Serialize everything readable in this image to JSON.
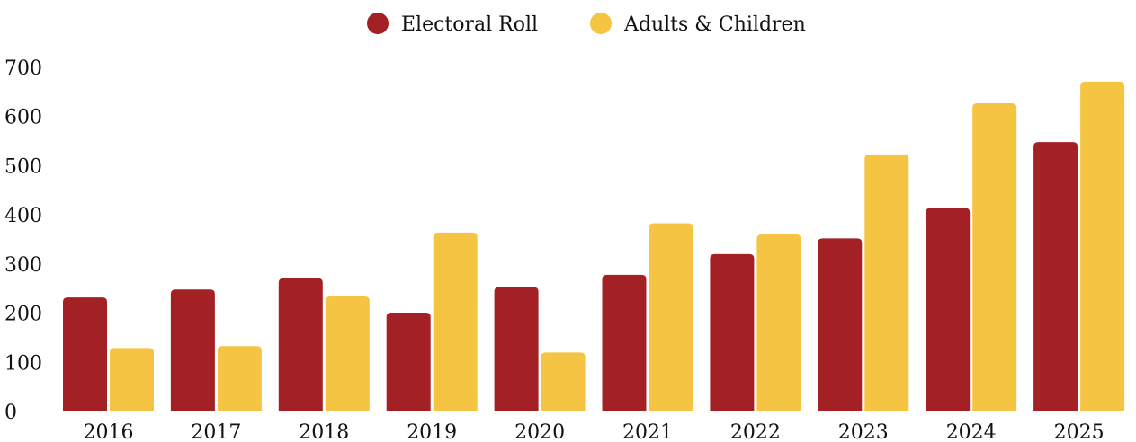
{
  "chart_data": {
    "type": "bar",
    "categories": [
      "2016",
      "2017",
      "2018",
      "2019",
      "2020",
      "2021",
      "2022",
      "2023",
      "2024",
      "2025"
    ],
    "series": [
      {
        "name": "Electoral Roll",
        "color": "#a32025",
        "values": [
          232,
          248,
          271,
          201,
          253,
          278,
          320,
          352,
          414,
          548
        ]
      },
      {
        "name": "Adults & Children",
        "color": "#f5c443",
        "values": [
          129,
          133,
          234,
          364,
          120,
          383,
          360,
          523,
          627,
          671
        ]
      }
    ],
    "y_ticks": [
      0,
      100,
      200,
      300,
      400,
      500,
      600,
      700
    ],
    "ylim": [
      0,
      700
    ],
    "title": "",
    "xlabel": "",
    "ylabel": "",
    "grid": false,
    "legend_position": "top-center"
  }
}
